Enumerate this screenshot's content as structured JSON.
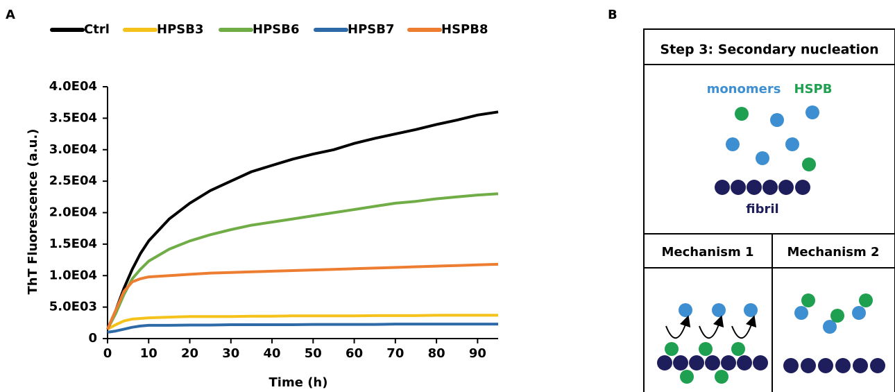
{
  "panels": [
    "A",
    "B"
  ],
  "chart_data": {
    "type": "line",
    "y_label": "ThT Fluorescence (a.u.)",
    "x_label": "Time (h)",
    "x": [
      0,
      2,
      4,
      6,
      8,
      10,
      15,
      20,
      25,
      30,
      35,
      40,
      45,
      50,
      55,
      60,
      65,
      70,
      75,
      80,
      85,
      90,
      95
    ],
    "xlim": [
      0,
      95
    ],
    "xticks": [
      0,
      10,
      20,
      30,
      40,
      50,
      60,
      70,
      80,
      90
    ],
    "ylim": [
      0,
      40000
    ],
    "yticks": [
      0,
      {
        "value": 5000,
        "label": "5.0E03"
      },
      {
        "value": 10000,
        "label": "1.0E04"
      },
      {
        "value": 15000,
        "label": "1.5E04"
      },
      {
        "value": 20000,
        "label": "2.0E04"
      },
      {
        "value": 25000,
        "label": "2.5E04"
      },
      {
        "value": 30000,
        "label": "3.0E04"
      },
      {
        "value": 35000,
        "label": "3.5E04"
      },
      {
        "value": 40000,
        "label": "4.0E04"
      }
    ],
    "series": [
      {
        "name": "Ctrl",
        "color": "#000000",
        "values": [
          1500,
          4500,
          8000,
          11000,
          13500,
          15500,
          19000,
          21500,
          23500,
          25000,
          26500,
          27500,
          28500,
          29300,
          30000,
          31000,
          31800,
          32500,
          33200,
          34000,
          34700,
          35500,
          36000
        ]
      },
      {
        "name": "HPSB3",
        "color": "#f5c21b",
        "values": [
          1500,
          2200,
          2800,
          3100,
          3200,
          3300,
          3400,
          3500,
          3500,
          3500,
          3550,
          3550,
          3600,
          3600,
          3600,
          3600,
          3650,
          3650,
          3650,
          3700,
          3700,
          3700,
          3700
        ]
      },
      {
        "name": "HPSB6",
        "color": "#70ad47",
        "values": [
          1500,
          4000,
          7000,
          9500,
          11000,
          12300,
          14200,
          15500,
          16500,
          17300,
          18000,
          18500,
          19000,
          19500,
          20000,
          20500,
          21000,
          21500,
          21800,
          22200,
          22500,
          22800,
          23000
        ]
      },
      {
        "name": "HPSB7",
        "color": "#2e6aa8",
        "values": [
          1000,
          1200,
          1500,
          1800,
          2000,
          2100,
          2100,
          2150,
          2150,
          2200,
          2200,
          2200,
          2200,
          2250,
          2250,
          2250,
          2250,
          2300,
          2300,
          2300,
          2300,
          2300,
          2300
        ]
      },
      {
        "name": "HSPB8",
        "color": "#ed7d31",
        "values": [
          1500,
          4500,
          7500,
          9000,
          9500,
          9800,
          10000,
          10200,
          10400,
          10500,
          10600,
          10700,
          10800,
          10900,
          11000,
          11100,
          11200,
          11300,
          11400,
          11500,
          11600,
          11700,
          11800
        ]
      }
    ]
  },
  "diagram": {
    "title": "Step 3: Secondary nucleation",
    "monomers": "monomers",
    "hspb": "HSPB",
    "fibril": "fibril",
    "mechanisms": [
      "Mechanism 1",
      "Mechanism 2"
    ]
  }
}
